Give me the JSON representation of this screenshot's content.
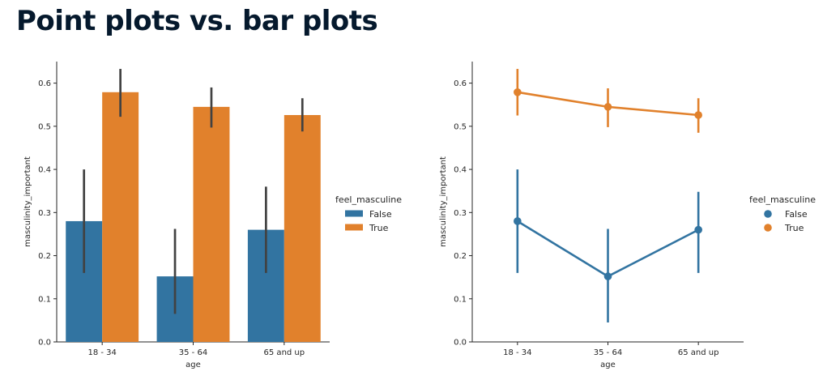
{
  "page": {
    "title": "Point plots vs. bar plots"
  },
  "chart_data": [
    {
      "type": "bar",
      "categories": [
        "18 - 34",
        "35 - 64",
        "65 and up"
      ],
      "xlabel": "age",
      "ylabel": "masculinity_important",
      "ylim": [
        0,
        0.65
      ],
      "yticks": [
        0.0,
        0.1,
        0.2,
        0.3,
        0.4,
        0.5,
        0.6
      ],
      "legend": {
        "title": "feel_masculine",
        "placement": "right"
      },
      "series": [
        {
          "name": "False",
          "color": "#3274a1",
          "values": [
            0.28,
            0.152,
            0.26
          ],
          "ci_low": [
            0.16,
            0.065,
            0.16
          ],
          "ci_high": [
            0.4,
            0.262,
            0.36
          ]
        },
        {
          "name": "True",
          "color": "#e1812c",
          "values": [
            0.579,
            0.545,
            0.526
          ],
          "ci_low": [
            0.522,
            0.497,
            0.488
          ],
          "ci_high": [
            0.633,
            0.59,
            0.565
          ]
        }
      ],
      "errorbar_color": "#424242"
    },
    {
      "type": "line",
      "categories": [
        "18 - 34",
        "35 - 64",
        "65 and up"
      ],
      "xlabel": "age",
      "ylabel": "masculinity_important",
      "ylim": [
        0,
        0.65
      ],
      "yticks": [
        0.0,
        0.1,
        0.2,
        0.3,
        0.4,
        0.5,
        0.6
      ],
      "legend": {
        "title": "feel_masculine",
        "placement": "right"
      },
      "series": [
        {
          "name": "False",
          "color": "#3274a1",
          "values": [
            0.28,
            0.152,
            0.26
          ],
          "ci_low": [
            0.16,
            0.045,
            0.16
          ],
          "ci_high": [
            0.4,
            0.262,
            0.348
          ]
        },
        {
          "name": "True",
          "color": "#e1812c",
          "values": [
            0.579,
            0.545,
            0.526
          ],
          "ci_low": [
            0.525,
            0.498,
            0.485
          ],
          "ci_high": [
            0.633,
            0.588,
            0.565
          ]
        }
      ]
    }
  ]
}
